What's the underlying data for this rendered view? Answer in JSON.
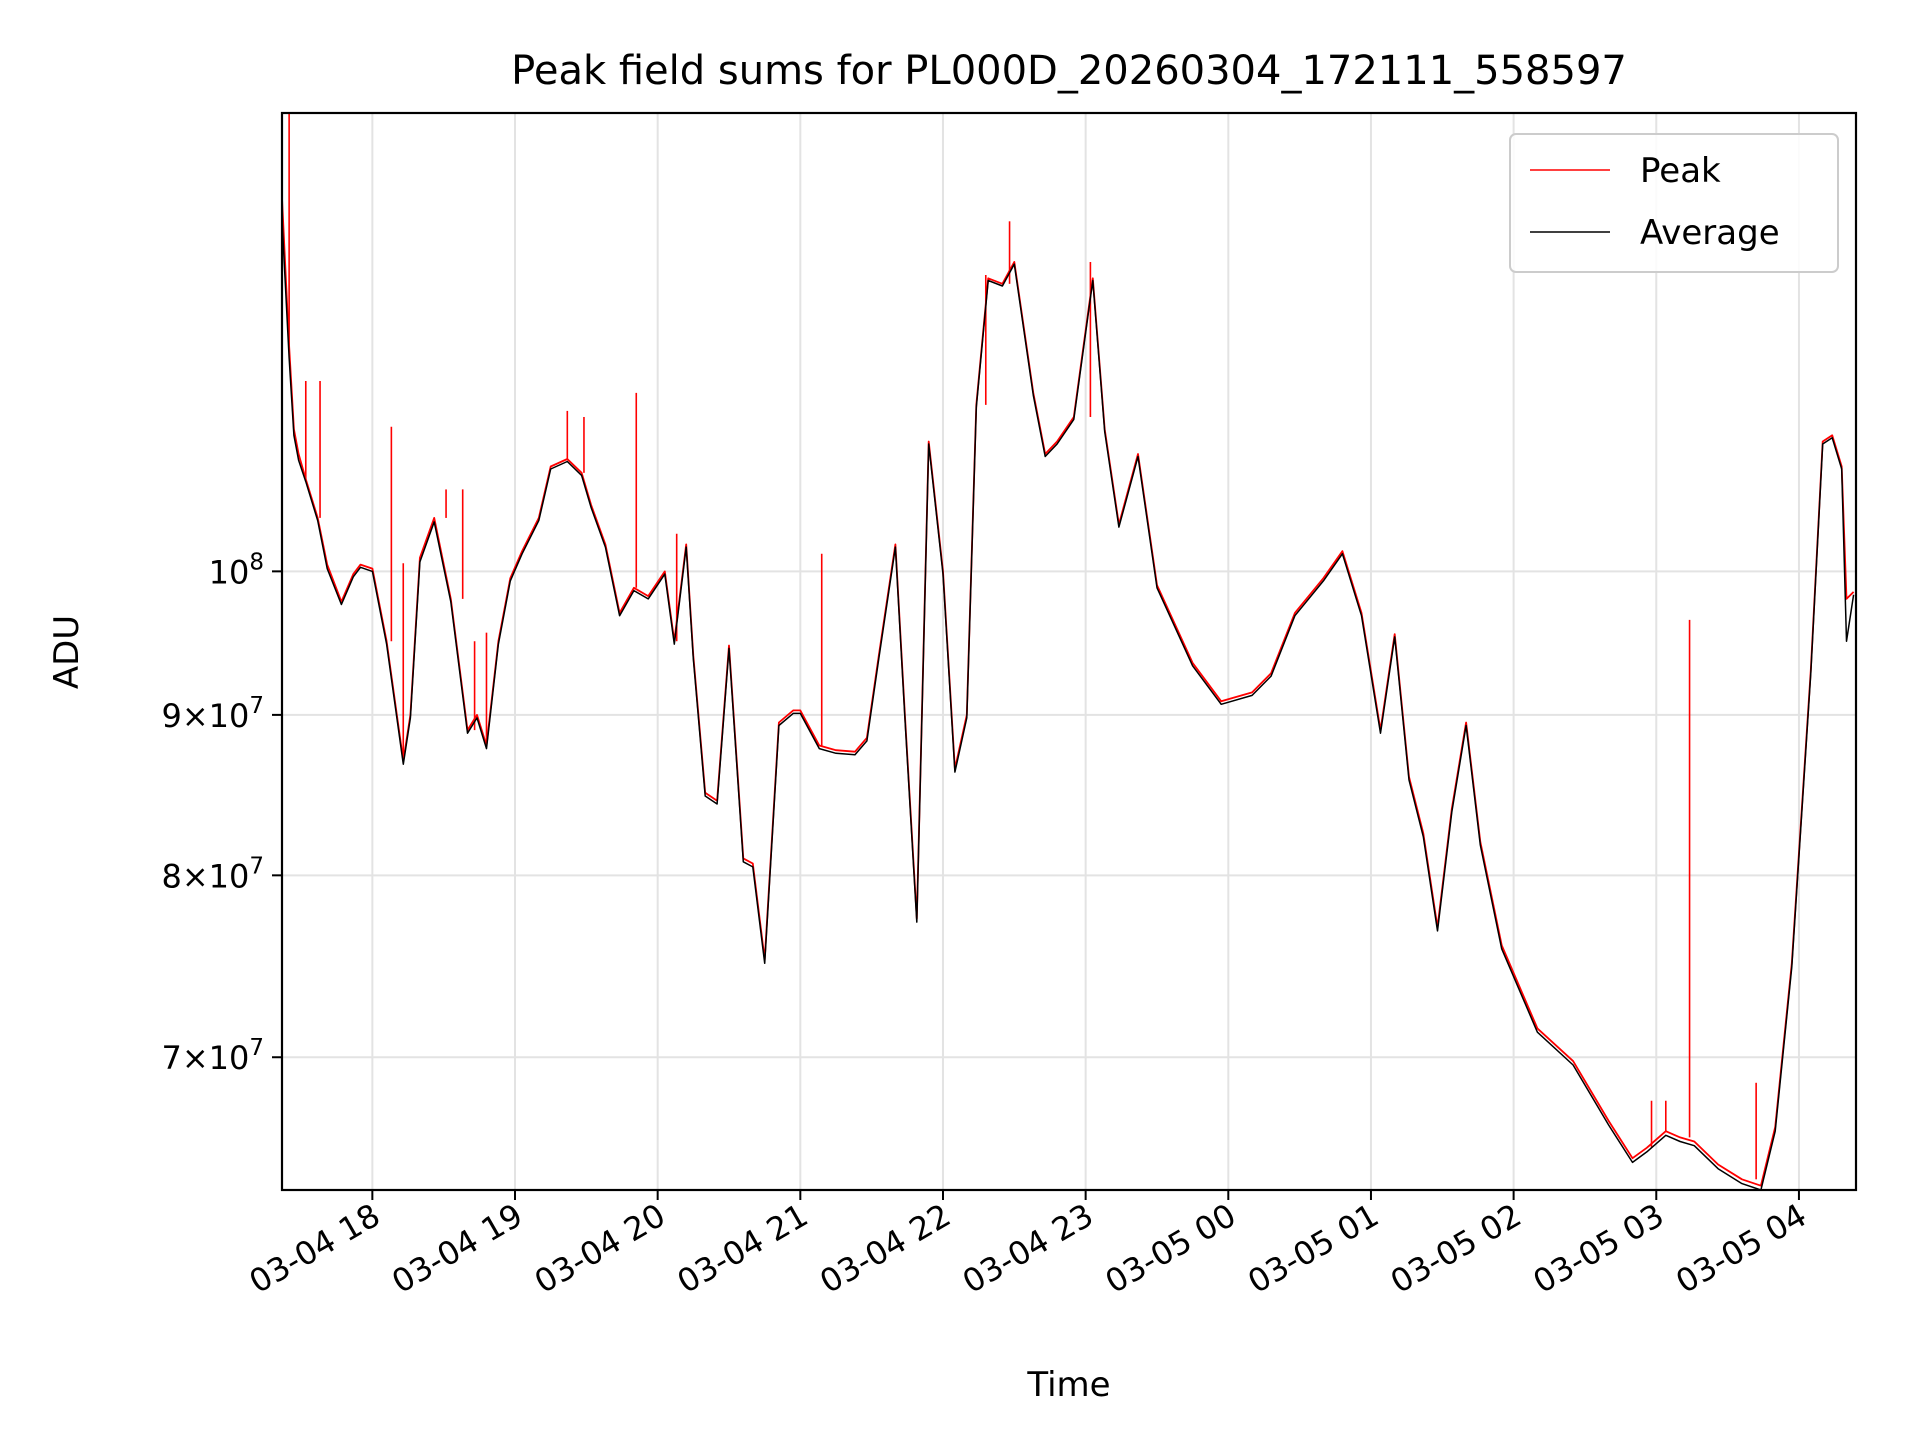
{
  "chart_data": {
    "type": "line",
    "title": "Peak field sums for PL000D_20260304_172111_558597",
    "xlabel": "Time",
    "ylabel": "ADU",
    "y_scale": "log",
    "grid": true,
    "legend_position": "top-right",
    "xlim": [
      "2026-03-04 17:22",
      "2026-03-05 04:24"
    ],
    "ylim": [
      63500000,
      140000000
    ],
    "x_ticks": [
      {
        "label": "03-04 18",
        "value": "2026-03-04 18:00"
      },
      {
        "label": "03-04 19",
        "value": "2026-03-04 19:00"
      },
      {
        "label": "03-04 20",
        "value": "2026-03-04 20:00"
      },
      {
        "label": "03-04 21",
        "value": "2026-03-04 21:00"
      },
      {
        "label": "03-04 22",
        "value": "2026-03-04 22:00"
      },
      {
        "label": "03-04 23",
        "value": "2026-03-04 23:00"
      },
      {
        "label": "03-05 00",
        "value": "2026-03-05 00:00"
      },
      {
        "label": "03-05 01",
        "value": "2026-03-05 01:00"
      },
      {
        "label": "03-05 02",
        "value": "2026-03-05 02:00"
      },
      {
        "label": "03-05 03",
        "value": "2026-03-05 03:00"
      },
      {
        "label": "03-05 04",
        "value": "2026-03-05 04:00"
      }
    ],
    "y_ticks": [
      {
        "base": "10",
        "exp": "8",
        "prefix": "",
        "value": 100000000
      },
      {
        "base": "10",
        "exp": "7",
        "prefix": "9×",
        "value": 90000000
      },
      {
        "base": "10",
        "exp": "7",
        "prefix": "8×",
        "value": 80000000
      },
      {
        "base": "10",
        "exp": "7",
        "prefix": "7×",
        "value": 70000000
      }
    ],
    "series": [
      {
        "name": "Peak",
        "color": "#ff0000",
        "x": [
          "2026-03-04 17:22",
          "2026-03-04 17:25",
          "2026-03-04 17:27",
          "2026-03-04 17:29",
          "2026-03-04 17:32",
          "2026-03-04 17:37",
          "2026-03-04 17:41",
          "2026-03-04 17:47",
          "2026-03-04 17:52",
          "2026-03-04 17:55",
          "2026-03-04 18:00",
          "2026-03-04 18:06",
          "2026-03-04 18:13",
          "2026-03-04 18:16",
          "2026-03-04 18:20",
          "2026-03-04 18:26",
          "2026-03-04 18:33",
          "2026-03-04 18:40",
          "2026-03-04 18:44",
          "2026-03-04 18:48",
          "2026-03-04 18:53",
          "2026-03-04 18:58",
          "2026-03-04 19:03",
          "2026-03-04 19:10",
          "2026-03-04 19:15",
          "2026-03-04 19:22",
          "2026-03-04 19:28",
          "2026-03-04 19:32",
          "2026-03-04 19:38",
          "2026-03-04 19:44",
          "2026-03-04 19:50",
          "2026-03-04 19:56",
          "2026-03-04 20:03",
          "2026-03-04 20:07",
          "2026-03-04 20:12",
          "2026-03-04 20:15",
          "2026-03-04 20:20",
          "2026-03-04 20:25",
          "2026-03-04 20:30",
          "2026-03-04 20:36",
          "2026-03-04 20:40",
          "2026-03-04 20:45",
          "2026-03-04 20:51",
          "2026-03-04 20:57",
          "2026-03-04 21:00",
          "2026-03-04 21:08",
          "2026-03-04 21:15",
          "2026-03-04 21:23",
          "2026-03-04 21:28",
          "2026-03-04 21:33",
          "2026-03-04 21:40",
          "2026-03-04 21:44",
          "2026-03-04 21:49",
          "2026-03-04 21:54",
          "2026-03-04 22:00",
          "2026-03-04 22:05",
          "2026-03-04 22:10",
          "2026-03-04 22:14",
          "2026-03-04 22:19",
          "2026-03-04 22:25",
          "2026-03-04 22:30",
          "2026-03-04 22:38",
          "2026-03-04 22:43",
          "2026-03-04 22:48",
          "2026-03-04 22:55",
          "2026-03-04 23:03",
          "2026-03-04 23:08",
          "2026-03-04 23:14",
          "2026-03-04 23:22",
          "2026-03-04 23:30",
          "2026-03-04 23:45",
          "2026-03-04 23:57",
          "2026-03-05 00:10",
          "2026-03-05 00:18",
          "2026-03-05 00:28",
          "2026-03-05 00:40",
          "2026-03-05 00:48",
          "2026-03-05 00:56",
          "2026-03-05 01:04",
          "2026-03-05 01:10",
          "2026-03-05 01:16",
          "2026-03-05 01:22",
          "2026-03-05 01:28",
          "2026-03-05 01:34",
          "2026-03-05 01:40",
          "2026-03-05 01:46",
          "2026-03-05 01:55",
          "2026-03-05 02:10",
          "2026-03-05 02:25",
          "2026-03-05 02:40",
          "2026-03-05 02:50",
          "2026-03-05 02:56",
          "2026-03-05 03:04",
          "2026-03-05 03:10",
          "2026-03-05 03:16",
          "2026-03-05 03:26",
          "2026-03-05 03:36",
          "2026-03-05 03:44",
          "2026-03-05 03:50",
          "2026-03-05 03:57",
          "2026-03-05 04:05",
          "2026-03-05 04:10",
          "2026-03-05 04:14",
          "2026-03-05 04:18",
          "2026-03-05 04:20",
          "2026-03-05 04:23"
        ],
        "values": [
          131500000,
          118000000,
          111000000,
          109000000,
          107000000,
          104000000,
          100500000,
          97800000,
          99800000,
          100500000,
          100200000,
          95000000,
          87000000,
          90000000,
          101000000,
          104000000,
          98000000,
          89000000,
          90000000,
          88000000,
          95000000,
          99500000,
          101500000,
          104000000,
          108000000,
          108600000,
          107500000,
          105000000,
          102000000,
          97000000,
          98800000,
          98200000,
          100000000,
          95000000,
          102000000,
          94000000,
          85000000,
          84500000,
          94700000,
          81000000,
          80700000,
          75200000,
          89500000,
          90300000,
          90300000,
          88000000,
          87700000,
          87600000,
          88500000,
          94000000,
          102000000,
          90000000,
          77500000,
          110000000,
          100000000,
          86500000,
          90000000,
          113000000,
          124000000,
          123500000,
          125500000,
          114000000,
          109000000,
          110000000,
          112000000,
          124000000,
          111000000,
          103500000,
          109000000,
          99000000,
          93500000,
          90900000,
          91500000,
          92800000,
          97000000,
          99500000,
          101500000,
          97000000,
          89000000,
          95500000,
          86000000,
          82500000,
          77000000,
          84000000,
          89500000,
          82000000,
          76000000,
          71500000,
          69800000,
          66800000,
          65000000,
          65500000,
          66300000,
          66000000,
          65800000,
          64700000,
          64000000,
          63700000,
          66500000,
          75000000,
          93000000,
          110000000,
          110500000,
          108000000,
          98000000,
          98500000
        ],
        "spikes": [
          {
            "x": "2026-03-04 17:25",
            "value": 140000000
          },
          {
            "x": "2026-03-04 17:32",
            "value": 115000000
          },
          {
            "x": "2026-03-04 17:38",
            "value": 115000000
          },
          {
            "x": "2026-03-04 18:08",
            "value": 111200000
          },
          {
            "x": "2026-03-04 18:13",
            "value": 100600000
          },
          {
            "x": "2026-03-04 18:31",
            "value": 106200000
          },
          {
            "x": "2026-03-04 18:38",
            "value": 106200000
          },
          {
            "x": "2026-03-04 18:43",
            "value": 95000000
          },
          {
            "x": "2026-03-04 18:48",
            "value": 95600000
          },
          {
            "x": "2026-03-04 19:22",
            "value": 112500000
          },
          {
            "x": "2026-03-04 19:29",
            "value": 112000000
          },
          {
            "x": "2026-03-04 19:51",
            "value": 114000000
          },
          {
            "x": "2026-03-04 20:08",
            "value": 102800000
          },
          {
            "x": "2026-03-04 21:09",
            "value": 101300000
          },
          {
            "x": "2026-03-04 22:18",
            "value": 124300000
          },
          {
            "x": "2026-03-04 22:28",
            "value": 129300000
          },
          {
            "x": "2026-03-04 23:02",
            "value": 125500000
          },
          {
            "x": "2026-03-05 02:58",
            "value": 67800000
          },
          {
            "x": "2026-03-05 03:04",
            "value": 67800000
          },
          {
            "x": "2026-03-05 03:14",
            "value": 96500000
          },
          {
            "x": "2026-03-05 03:42",
            "value": 68700000
          }
        ]
      },
      {
        "name": "Average",
        "color": "#000000",
        "x": [
          "2026-03-04 17:22",
          "2026-03-04 17:25",
          "2026-03-04 17:27",
          "2026-03-04 17:29",
          "2026-03-04 17:32",
          "2026-03-04 17:37",
          "2026-03-04 17:41",
          "2026-03-04 17:47",
          "2026-03-04 17:52",
          "2026-03-04 17:55",
          "2026-03-04 18:00",
          "2026-03-04 18:06",
          "2026-03-04 18:13",
          "2026-03-04 18:16",
          "2026-03-04 18:20",
          "2026-03-04 18:26",
          "2026-03-04 18:33",
          "2026-03-04 18:40",
          "2026-03-04 18:44",
          "2026-03-04 18:48",
          "2026-03-04 18:53",
          "2026-03-04 18:58",
          "2026-03-04 19:03",
          "2026-03-04 19:10",
          "2026-03-04 19:15",
          "2026-03-04 19:22",
          "2026-03-04 19:28",
          "2026-03-04 19:32",
          "2026-03-04 19:38",
          "2026-03-04 19:44",
          "2026-03-04 19:50",
          "2026-03-04 19:56",
          "2026-03-04 20:03",
          "2026-03-04 20:07",
          "2026-03-04 20:12",
          "2026-03-04 20:15",
          "2026-03-04 20:20",
          "2026-03-04 20:25",
          "2026-03-04 20:30",
          "2026-03-04 20:36",
          "2026-03-04 20:40",
          "2026-03-04 20:45",
          "2026-03-04 20:51",
          "2026-03-04 20:57",
          "2026-03-04 21:00",
          "2026-03-04 21:08",
          "2026-03-04 21:15",
          "2026-03-04 21:23",
          "2026-03-04 21:28",
          "2026-03-04 21:33",
          "2026-03-04 21:40",
          "2026-03-04 21:44",
          "2026-03-04 21:49",
          "2026-03-04 21:54",
          "2026-03-04 22:00",
          "2026-03-04 22:05",
          "2026-03-04 22:10",
          "2026-03-04 22:14",
          "2026-03-04 22:19",
          "2026-03-04 22:25",
          "2026-03-04 22:30",
          "2026-03-04 22:38",
          "2026-03-04 22:43",
          "2026-03-04 22:48",
          "2026-03-04 22:55",
          "2026-03-04 23:03",
          "2026-03-04 23:08",
          "2026-03-04 23:14",
          "2026-03-04 23:22",
          "2026-03-04 23:30",
          "2026-03-04 23:45",
          "2026-03-04 23:57",
          "2026-03-05 00:10",
          "2026-03-05 00:18",
          "2026-03-05 00:28",
          "2026-03-05 00:40",
          "2026-03-05 00:48",
          "2026-03-05 00:56",
          "2026-03-05 01:04",
          "2026-03-05 01:10",
          "2026-03-05 01:16",
          "2026-03-05 01:22",
          "2026-03-05 01:28",
          "2026-03-05 01:34",
          "2026-03-05 01:40",
          "2026-03-05 01:46",
          "2026-03-05 01:55",
          "2026-03-05 02:10",
          "2026-03-05 02:25",
          "2026-03-05 02:40",
          "2026-03-05 02:50",
          "2026-03-05 02:56",
          "2026-03-05 03:04",
          "2026-03-05 03:10",
          "2026-03-05 03:16",
          "2026-03-05 03:26",
          "2026-03-05 03:36",
          "2026-03-05 03:44",
          "2026-03-05 03:50",
          "2026-03-05 03:57",
          "2026-03-05 04:05",
          "2026-03-05 04:10",
          "2026-03-05 04:14",
          "2026-03-05 04:18",
          "2026-03-05 04:20",
          "2026-03-05 04:23"
        ],
        "values": [
          129500000,
          117000000,
          110500000,
          108500000,
          106800000,
          103800000,
          100200000,
          97600000,
          99600000,
          100300000,
          100000000,
          94800000,
          86800000,
          89800000,
          100700000,
          103700000,
          97800000,
          88800000,
          89800000,
          87800000,
          94800000,
          99300000,
          101300000,
          103800000,
          107800000,
          108400000,
          107300000,
          104800000,
          101800000,
          96800000,
          98600000,
          98000000,
          99800000,
          94800000,
          101800000,
          93800000,
          84800000,
          84300000,
          94500000,
          80800000,
          80500000,
          75000000,
          89300000,
          90100000,
          90100000,
          87800000,
          87500000,
          87400000,
          88300000,
          93800000,
          101800000,
          89800000,
          77300000,
          109800000,
          99800000,
          86300000,
          89800000,
          112800000,
          123800000,
          123300000,
          125300000,
          113800000,
          108800000,
          109800000,
          111800000,
          123800000,
          110800000,
          103300000,
          108800000,
          98800000,
          93300000,
          90700000,
          91300000,
          92600000,
          96800000,
          99300000,
          101300000,
          96800000,
          88800000,
          95300000,
          85800000,
          82300000,
          76800000,
          83800000,
          89300000,
          81800000,
          75800000,
          71300000,
          69600000,
          66600000,
          64800000,
          65300000,
          66100000,
          65800000,
          65600000,
          64500000,
          63800000,
          63500000,
          66300000,
          74800000,
          92800000,
          109800000,
          110300000,
          107800000,
          95000000,
          98300000
        ]
      }
    ]
  }
}
